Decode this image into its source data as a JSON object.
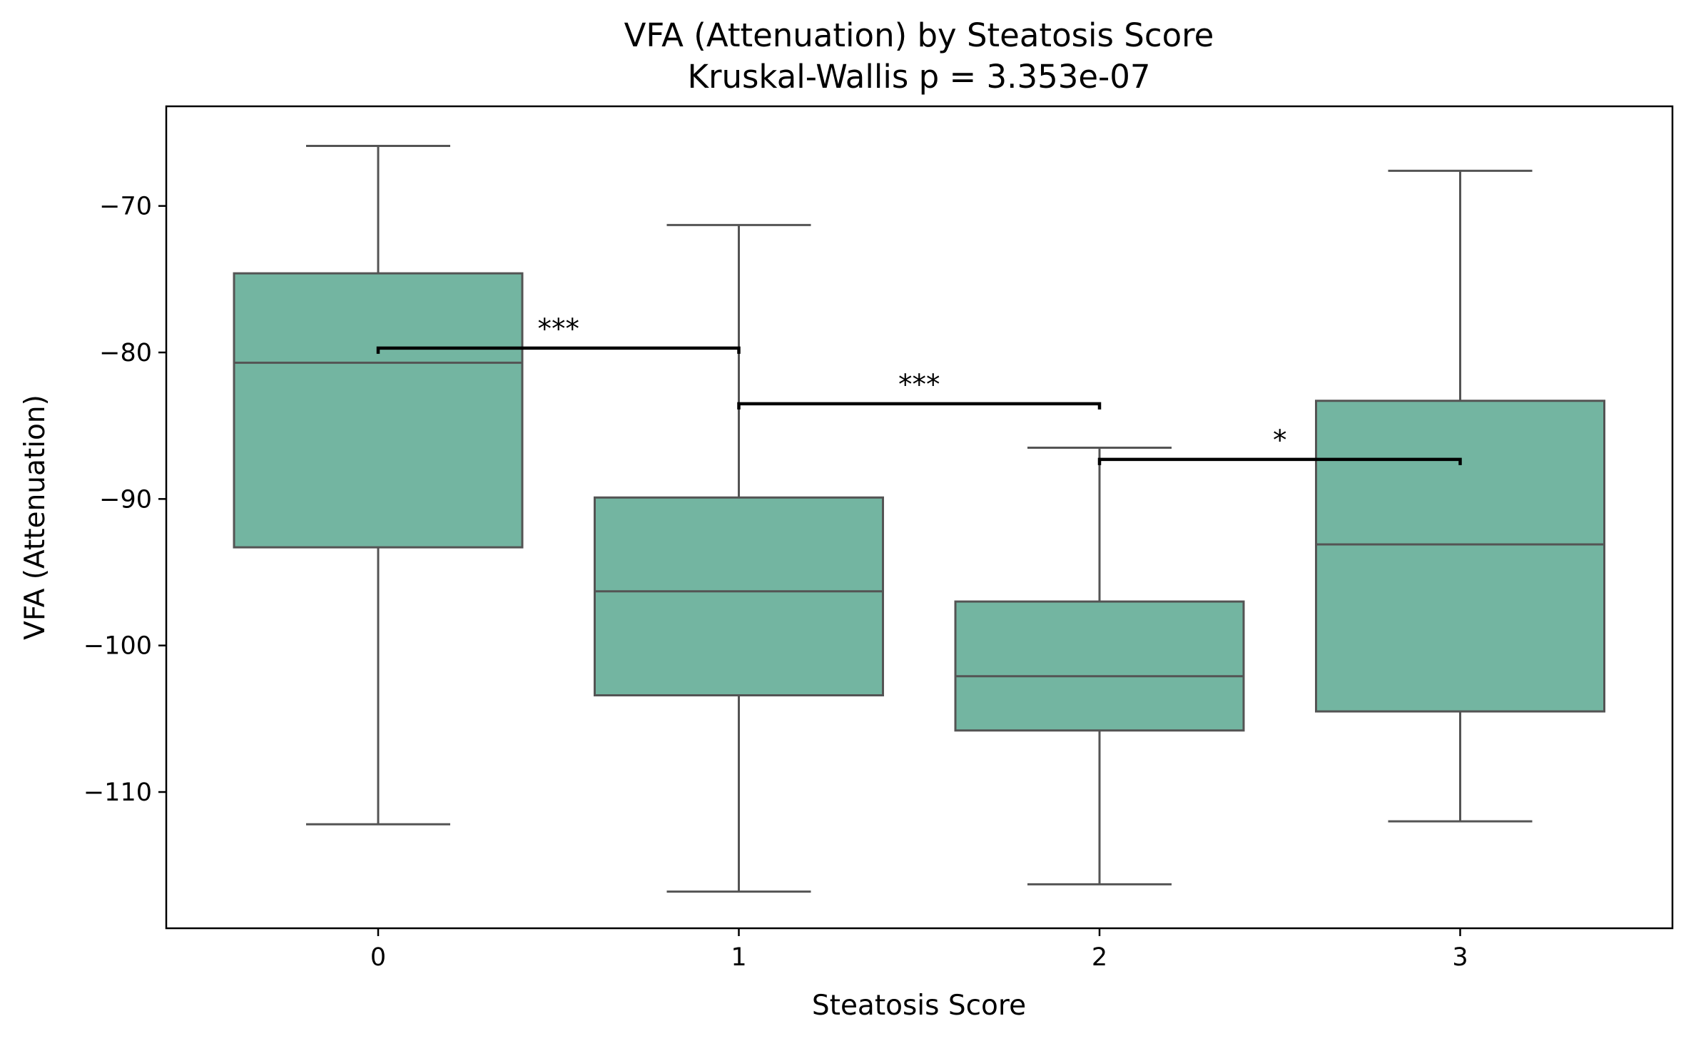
{
  "chart_data": {
    "type": "box",
    "title": "VFA (Attenuation) by Steatosis Score",
    "subtitle": "Kruskal-Wallis p = 3.353e-07",
    "xlabel": "Steatosis Score",
    "ylabel": "VFA (Attenuation)",
    "categories": [
      "0",
      "1",
      "2",
      "3"
    ],
    "ylim": [
      -119.3,
      -63.2
    ],
    "yticks": [
      -70,
      -80,
      -90,
      -100,
      -110
    ],
    "ytick_labels": [
      "−70",
      "−80",
      "−90",
      "−100",
      "−110"
    ],
    "grid": false,
    "box_color": "#73b5a1",
    "line_color": "#545454",
    "boxes": [
      {
        "category": "0",
        "whisker_low": -112.2,
        "q1": -93.3,
        "median": -80.7,
        "q3": -74.6,
        "whisker_high": -65.9
      },
      {
        "category": "1",
        "whisker_low": -116.8,
        "q1": -103.4,
        "median": -96.3,
        "q3": -89.9,
        "whisker_high": -71.3
      },
      {
        "category": "2",
        "whisker_low": -116.3,
        "q1": -105.8,
        "median": -102.1,
        "q3": -97.0,
        "whisker_high": -86.5
      },
      {
        "category": "3",
        "whisker_low": -112.0,
        "q1": -104.5,
        "median": -93.1,
        "q3": -83.3,
        "whisker_high": -67.6
      }
    ],
    "significance": [
      {
        "from": "0",
        "to": "1",
        "y": -79.7,
        "label": "***"
      },
      {
        "from": "1",
        "to": "2",
        "y": -83.5,
        "label": "***"
      },
      {
        "from": "2",
        "to": "3",
        "y": -87.3,
        "label": "*"
      }
    ]
  }
}
